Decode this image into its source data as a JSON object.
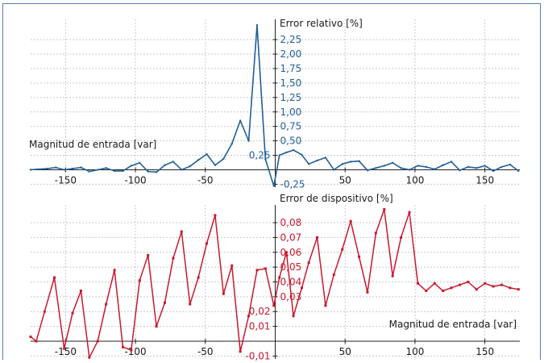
{
  "chart_data": [
    {
      "type": "line",
      "title": "",
      "xlabel": "Magnitud de entrada [var]",
      "ylabel": "Error relativo [%]",
      "xlim": [
        -175,
        175
      ],
      "ylim": [
        -0.3,
        2.6
      ],
      "x_ticks": [
        "-150",
        "-100",
        "-50",
        "50",
        "100",
        "150"
      ],
      "y_ticks_right": [
        "2,25",
        "2,00",
        "1,75",
        "1,50",
        "1,25",
        "1,00",
        "0,75",
        "0,50",
        "-0,25"
      ],
      "y_tick_left": "0,25",
      "grid": true,
      "color": "#1f5f9a",
      "series": [
        {
          "x": [
            -176,
            -170,
            -163,
            -157,
            -151,
            -145,
            -139,
            -133,
            -127,
            -121,
            -115,
            -109,
            -103,
            -97,
            -91,
            -85,
            -79,
            -73,
            -67,
            -61,
            -55,
            -49,
            -43,
            -37,
            -31,
            -25,
            -19,
            -13,
            -7,
            -1,
            3,
            8,
            13,
            19,
            24,
            30,
            36,
            42,
            48,
            54,
            60,
            66,
            72,
            78,
            84,
            90,
            96,
            102,
            108,
            114,
            120,
            126,
            132,
            138,
            144,
            150,
            156,
            162,
            168,
            174
          ],
          "y": [
            0,
            0.01,
            0.02,
            0.04,
            0,
            0.02,
            0.04,
            -0.03,
            0,
            0.03,
            -0.02,
            -0.02,
            0.07,
            0.12,
            -0.03,
            -0.04,
            0.08,
            0.14,
            0,
            0.06,
            0.17,
            0.27,
            0.08,
            0.19,
            0.45,
            0.85,
            0.5,
            2.5,
            0.18,
            -0.28,
            0.25,
            0.3,
            0.34,
            0.26,
            0.1,
            0.16,
            0.21,
            0,
            0.1,
            0.14,
            0.15,
            -0.01,
            0.03,
            0.07,
            0.12,
            0.03,
            0,
            0.07,
            0.05,
            0.01,
            0.08,
            0.14,
            -0.01,
            0.05,
            0.03,
            0.07,
            -0.02,
            0.05,
            0.09,
            -0.02
          ]
        }
      ]
    },
    {
      "type": "line",
      "title": "",
      "xlabel": "Magnitud de entrada [var]",
      "ylabel": "Error de dispositivo [%]",
      "xlim": [
        -175,
        175
      ],
      "ylim": [
        -0.012,
        0.092
      ],
      "x_ticks": [
        "-150",
        "-100",
        "-50",
        "50",
        "100",
        "150"
      ],
      "y_ticks_right": [
        "0,08",
        "0,07",
        "0,06",
        "0,05",
        "0,04",
        "0,03"
      ],
      "y_ticks_left": [
        "0,02",
        "0,01",
        "-0,01"
      ],
      "grid": true,
      "color": "#c8192e",
      "series": [
        {
          "x": [
            -176,
            -171,
            -165,
            -158,
            -151,
            -145,
            -139,
            -133,
            -127,
            -121,
            -115,
            -109,
            -103,
            -97,
            -91,
            -85,
            -79,
            -73,
            -67,
            -61,
            -55,
            -49,
            -43,
            -37,
            -31,
            -25,
            -19,
            -13,
            -7,
            -1,
            3,
            8,
            13,
            19,
            24,
            30,
            36,
            42,
            48,
            54,
            60,
            66,
            72,
            78,
            84,
            90,
            96,
            102,
            108,
            114,
            120,
            126,
            132,
            138,
            144,
            150,
            156,
            162,
            168,
            174
          ],
          "y": [
            0.003,
            0,
            0.02,
            0.043,
            -0.005,
            0.019,
            0.034,
            -0.011,
            0,
            0.025,
            0.048,
            -0.004,
            -0.006,
            0.041,
            0.058,
            0.01,
            0.026,
            0.056,
            0.074,
            0.025,
            0.043,
            0.066,
            0.085,
            0.032,
            0.051,
            -0.007,
            0.017,
            0.048,
            0.049,
            0.024,
            0.043,
            0.06,
            0.017,
            0.036,
            0.053,
            0.07,
            0.024,
            0.045,
            0.062,
            0.081,
            0.057,
            0.033,
            0.073,
            0.089,
            0.044,
            0.07,
            0.087,
            0.039,
            0.034,
            0.039,
            0.034,
            0.036,
            0.038,
            0.04,
            0.035,
            0.039,
            0.037,
            0.038,
            0.036,
            0.035
          ]
        }
      ]
    }
  ]
}
